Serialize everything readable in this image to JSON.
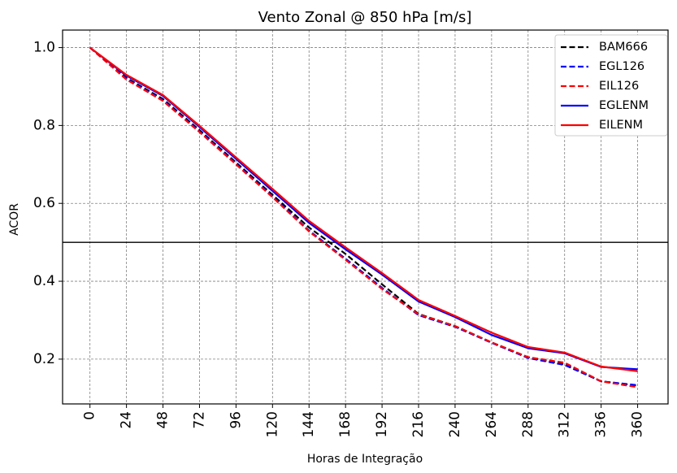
{
  "chart_data": {
    "type": "line",
    "title": "Vento Zonal @ 850 hPa [m/s]",
    "xlabel": "Horas de Integração",
    "ylabel": "ACOR",
    "x": [
      0,
      24,
      48,
      72,
      96,
      120,
      144,
      168,
      192,
      216,
      240,
      264,
      288,
      312,
      336,
      360
    ],
    "x_tick_labels": [
      "0",
      "24",
      "48",
      "72",
      "96",
      "120",
      "144",
      "168",
      "192",
      "216",
      "240",
      "264",
      "288",
      "312",
      "336",
      "360"
    ],
    "xlim": [
      -18,
      380
    ],
    "ylim": [
      0.085,
      1.045
    ],
    "y_ticks": [
      0.2,
      0.4,
      0.6,
      0.8,
      1.0
    ],
    "y_tick_labels": [
      "0.2",
      "0.4",
      "0.6",
      "0.8",
      "1.0"
    ],
    "reference_line": 0.5,
    "grid": true,
    "legend_position": "top-right",
    "series": [
      {
        "name": "BAM666",
        "color": "#000000",
        "dash": "dashed",
        "values": [
          1.0,
          0.922,
          0.868,
          0.788,
          0.705,
          0.622,
          0.538,
          0.47,
          0.392,
          0.316,
          0.285,
          0.243,
          0.205,
          0.187,
          0.143,
          0.132
        ]
      },
      {
        "name": "EGL126",
        "color": "#0000ff",
        "dash": "dashed",
        "values": [
          1.0,
          0.92,
          0.865,
          0.785,
          0.702,
          0.618,
          0.53,
          0.458,
          0.383,
          0.313,
          0.283,
          0.242,
          0.203,
          0.185,
          0.143,
          0.133
        ]
      },
      {
        "name": "EIL126",
        "color": "#ff0000",
        "dash": "dashed",
        "values": [
          1.0,
          0.918,
          0.863,
          0.783,
          0.7,
          0.616,
          0.528,
          0.455,
          0.38,
          0.315,
          0.285,
          0.243,
          0.205,
          0.191,
          0.143,
          0.128
        ]
      },
      {
        "name": "EGLENM",
        "color": "#0000ff",
        "dash": "solid",
        "values": [
          1.0,
          0.928,
          0.876,
          0.796,
          0.714,
          0.632,
          0.55,
          0.482,
          0.417,
          0.348,
          0.308,
          0.262,
          0.228,
          0.215,
          0.18,
          0.174
        ]
      },
      {
        "name": "EILENM",
        "color": "#ff0000",
        "dash": "solid",
        "values": [
          1.0,
          0.93,
          0.878,
          0.799,
          0.718,
          0.637,
          0.555,
          0.487,
          0.421,
          0.352,
          0.311,
          0.268,
          0.231,
          0.217,
          0.181,
          0.169
        ]
      }
    ]
  }
}
